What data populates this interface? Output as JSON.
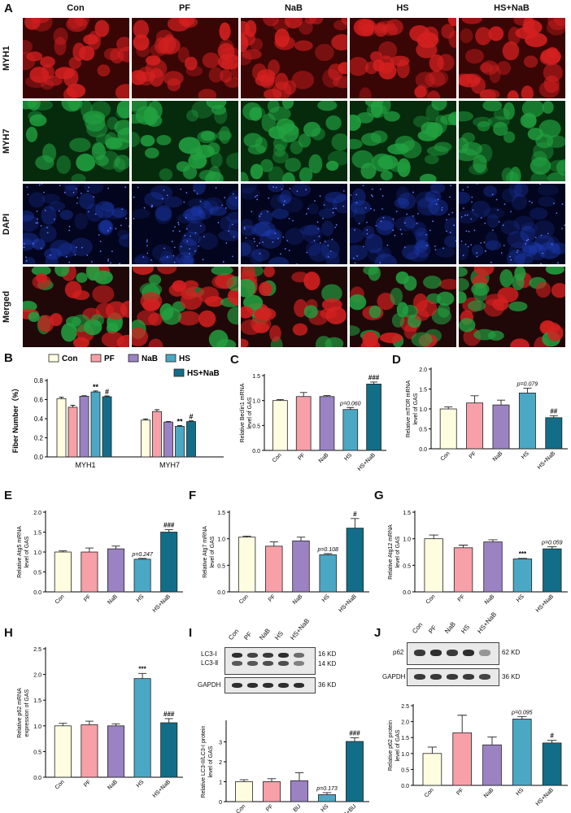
{
  "panel_letters": [
    "A",
    "B",
    "C",
    "D",
    "E",
    "F",
    "G",
    "H",
    "I",
    "J"
  ],
  "panel_a": {
    "groups": [
      "Con",
      "PF",
      "NaB",
      "HS",
      "HS+NaB"
    ],
    "rows": [
      "MYH1",
      "MYH7",
      "DAPI",
      "Merged"
    ]
  },
  "legend_b": [
    "Con",
    "PF",
    "NaB",
    "HS",
    "HS+NaB"
  ],
  "colors": {
    "Con": "#fffde0",
    "PF": "#f7a0a8",
    "NaB": "#9b82c2",
    "HS": "#4ba8c4",
    "HS+NaB": "#126d88",
    "MYH1": "#d42020",
    "MYH7": "#22a040",
    "DAPI": "#2040c0"
  },
  "blot_i": {
    "bands": [
      "LC3-Ⅰ",
      "LC3-Ⅱ",
      "GAPDH"
    ],
    "sizes": [
      "16 KD",
      "14 KD",
      "36 KD"
    ],
    "lanes": [
      "Con",
      "PF",
      "NaB",
      "HS",
      "HS+NaB"
    ]
  },
  "blot_j": {
    "bands": [
      "p62",
      "GAPDH"
    ],
    "sizes": [
      "62 KD",
      "36 KD"
    ],
    "lanes": [
      "Con",
      "PF",
      "NaB",
      "HS",
      "HS+NaB"
    ]
  },
  "chart_data": [
    {
      "id": "B",
      "type": "bar",
      "categories": [
        "MYH1",
        "MYH7"
      ],
      "ylabel": "Fiber Number（%）",
      "ylim": [
        0,
        0.8
      ],
      "yticks": [
        "0.0",
        "0.2",
        "0.4",
        "0.6",
        "0.8"
      ],
      "series": [
        {
          "name": "Con",
          "values": [
            0.61,
            0.385
          ],
          "err": [
            0.015,
            0.012
          ]
        },
        {
          "name": "PF",
          "values": [
            0.52,
            0.475
          ],
          "err": [
            0.02,
            0.02
          ]
        },
        {
          "name": "NaB",
          "values": [
            0.635,
            0.365
          ],
          "err": [
            0.005,
            0.005
          ]
        },
        {
          "name": "HS",
          "values": [
            0.68,
            0.32
          ],
          "err": [
            0.01,
            0.008
          ]
        },
        {
          "name": "HS+NaB",
          "values": [
            0.63,
            0.37
          ],
          "err": [
            0.008,
            0.008
          ]
        }
      ],
      "annotations": [
        {
          "cat": 0,
          "series": 3,
          "text": "**"
        },
        {
          "cat": 0,
          "series": 4,
          "text": "#"
        },
        {
          "cat": 1,
          "series": 3,
          "text": "**"
        },
        {
          "cat": 1,
          "series": 4,
          "text": "#"
        }
      ]
    },
    {
      "id": "C",
      "type": "bar",
      "categories": [
        "Con",
        "PF",
        "NaB",
        "HS",
        "HS+NaB"
      ],
      "ylabel": "Relative Beclin1 mRNA level of GAS",
      "ylim": [
        0,
        1.5
      ],
      "yticks": [
        "0.0",
        "0.5",
        "1.0",
        "1.5"
      ],
      "values": [
        1.0,
        1.08,
        1.08,
        0.82,
        1.33
      ],
      "err": [
        0.02,
        0.08,
        0.02,
        0.04,
        0.04
      ],
      "annotations": [
        {
          "bar": 3,
          "text": "p=0.060",
          "italic": true
        },
        {
          "bar": 4,
          "text": "###"
        }
      ]
    },
    {
      "id": "D",
      "type": "bar",
      "categories": [
        "Con",
        "PF",
        "NaB",
        "HS",
        "HS+NaB"
      ],
      "ylabel": "Relative mTOR mRNA level of GAS",
      "ylim": [
        0,
        2.0
      ],
      "yticks": [
        "0.0",
        "0.5",
        "1.0",
        "1.5",
        "2.0"
      ],
      "values": [
        1.0,
        1.15,
        1.1,
        1.4,
        0.78
      ],
      "err": [
        0.05,
        0.18,
        0.12,
        0.12,
        0.05
      ],
      "annotations": [
        {
          "bar": 3,
          "text": "p=0.079",
          "italic": true
        },
        {
          "bar": 4,
          "text": "##"
        }
      ]
    },
    {
      "id": "E",
      "type": "bar",
      "categories": [
        "Con",
        "PF",
        "NaB",
        "HS",
        "HS+NaB"
      ],
      "ylabel": "Relative Atg5 mRNA level of GAS",
      "ylim": [
        0,
        2.0
      ],
      "yticks": [
        "0.0",
        "0.5",
        "1.0",
        "1.5",
        "2.0"
      ],
      "values": [
        1.0,
        1.0,
        1.08,
        0.82,
        1.5
      ],
      "err": [
        0.03,
        0.1,
        0.07,
        0.02,
        0.06
      ],
      "annotations": [
        {
          "bar": 3,
          "text": "p=0.247",
          "italic": true
        },
        {
          "bar": 4,
          "text": "###"
        }
      ]
    },
    {
      "id": "F",
      "type": "bar",
      "categories": [
        "Con",
        "PF",
        "NaB",
        "HS",
        "HS+NaB"
      ],
      "ylabel": "Relative Atg7 mRNA level of GAS",
      "ylim": [
        0,
        1.5
      ],
      "yticks": [
        "0.0",
        "0.5",
        "1.0",
        "1.5"
      ],
      "values": [
        1.03,
        0.86,
        0.96,
        0.7,
        1.2
      ],
      "err": [
        0.02,
        0.08,
        0.07,
        0.02,
        0.18
      ],
      "annotations": [
        {
          "bar": 3,
          "text": "p=0.108",
          "italic": true
        },
        {
          "bar": 4,
          "text": "#"
        }
      ]
    },
    {
      "id": "G",
      "type": "bar",
      "categories": [
        "Con",
        "PF",
        "NaB",
        "HS",
        "HS+NaB"
      ],
      "ylabel": "Relative Atg12 mRNA level of GAS",
      "ylim": [
        0,
        1.5
      ],
      "yticks": [
        "0.0",
        "0.5",
        "1.0",
        "1.5"
      ],
      "values": [
        1.0,
        0.83,
        0.94,
        0.62,
        0.81
      ],
      "err": [
        0.07,
        0.05,
        0.04,
        0.01,
        0.04
      ],
      "annotations": [
        {
          "bar": 3,
          "text": "***"
        },
        {
          "bar": 4,
          "text": "p=0.059",
          "italic": true
        }
      ]
    },
    {
      "id": "H",
      "type": "bar",
      "categories": [
        "Con",
        "PF",
        "NaB",
        "HS",
        "HS+NaB"
      ],
      "ylabel": "Relative p62 mRNA expression of GAS",
      "ylim": [
        0,
        2.5
      ],
      "yticks": [
        "0.0",
        "0.5",
        "1.0",
        "1.5",
        "2.0",
        "2.5"
      ],
      "values": [
        1.0,
        1.02,
        1.0,
        1.92,
        1.06
      ],
      "err": [
        0.05,
        0.07,
        0.04,
        0.1,
        0.08
      ],
      "annotations": [
        {
          "bar": 3,
          "text": "***"
        },
        {
          "bar": 4,
          "text": "###"
        }
      ]
    },
    {
      "id": "I",
      "type": "bar",
      "categories": [
        "Con",
        "PF",
        "BU",
        "HS",
        "HS+BU"
      ],
      "ylabel": "Relative LC3-II/LC3-I protein level of GAS",
      "ylim": [
        0,
        4
      ],
      "yticks": [
        "0",
        "1",
        "2",
        "3"
      ],
      "values": [
        1.0,
        1.0,
        1.05,
        0.35,
        3.02
      ],
      "err": [
        0.1,
        0.15,
        0.4,
        0.1,
        0.18
      ],
      "annotations": [
        {
          "bar": 3,
          "text": "p=0.173",
          "italic": true
        },
        {
          "bar": 4,
          "text": "###"
        }
      ]
    },
    {
      "id": "J",
      "type": "bar",
      "categories": [
        "Con",
        "PF",
        "NaB",
        "HS",
        "HS+NaB"
      ],
      "ylabel": "Relative p62 protein level of GAS",
      "ylim": [
        0,
        2.5
      ],
      "yticks": [
        "0.0",
        "0.5",
        "1.0",
        "1.5",
        "2.0",
        "2.5"
      ],
      "values": [
        1.0,
        1.65,
        1.27,
        2.08,
        1.33
      ],
      "err": [
        0.2,
        0.55,
        0.25,
        0.08,
        0.08
      ],
      "annotations": [
        {
          "bar": 3,
          "text": "p=0.095",
          "italic": true
        },
        {
          "bar": 4,
          "text": "#"
        }
      ]
    }
  ]
}
